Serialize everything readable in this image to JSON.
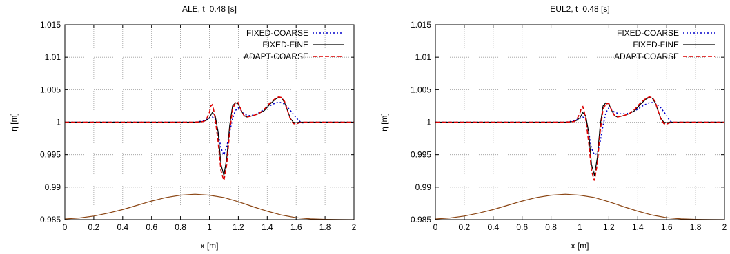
{
  "chart_data": [
    {
      "type": "line",
      "title": "ALE, t=0.48 [s]",
      "xlabel": "x [m]",
      "ylabel": "η [m]",
      "xlim": [
        0,
        2
      ],
      "ylim": [
        0.985,
        1.015
      ],
      "xticks": [
        "0",
        "0.2",
        "0.4",
        "0.6",
        "0.8",
        "1",
        "1.2",
        "1.4",
        "1.6",
        "1.8",
        "2"
      ],
      "yticks": [
        "0.985",
        "0.99",
        "0.995",
        "1",
        "1.005",
        "1.01",
        "1.015"
      ],
      "grid": true,
      "legend_position": "top-right",
      "series": [
        {
          "name": "FIXED-COARSE",
          "color": "#0000cc",
          "dash": "dotted",
          "x": [
            0,
            0.9,
            0.96,
            1.0,
            1.02,
            1.04,
            1.06,
            1.08,
            1.1,
            1.12,
            1.14,
            1.16,
            1.18,
            1.2,
            1.22,
            1.24,
            1.28,
            1.32,
            1.36,
            1.4,
            1.44,
            1.48,
            1.52,
            1.56,
            1.6,
            1.62,
            1.64,
            1.7,
            2.0
          ],
          "y": [
            1.0,
            1.0,
            1.0002,
            1.0006,
            1.0008,
            1.0004,
            0.9985,
            0.996,
            0.995,
            0.9962,
            0.9985,
            1.0005,
            1.0018,
            1.0022,
            1.0018,
            1.0012,
            1.001,
            1.0012,
            1.0017,
            1.0023,
            1.0028,
            1.0031,
            1.0028,
            1.0018,
            1.0007,
            1.0002,
            0.9999,
            1.0,
            1.0
          ]
        },
        {
          "name": "FIXED-FINE",
          "color": "#000000",
          "dash": "solid",
          "x": [
            0,
            0.9,
            0.96,
            0.98,
            1.0,
            1.02,
            1.04,
            1.06,
            1.08,
            1.1,
            1.12,
            1.14,
            1.16,
            1.18,
            1.2,
            1.22,
            1.24,
            1.26,
            1.3,
            1.34,
            1.38,
            1.42,
            1.46,
            1.48,
            1.5,
            1.52,
            1.54,
            1.56,
            1.58,
            1.6,
            1.62,
            1.7,
            2.0
          ],
          "y": [
            1.0,
            1.0,
            1.0001,
            1.0003,
            1.0007,
            1.0015,
            1.001,
            0.9985,
            0.9935,
            0.9918,
            0.9945,
            0.9995,
            1.0025,
            1.003,
            1.0028,
            1.0018,
            1.001,
            1.0008,
            1.001,
            1.0013,
            1.0018,
            1.0028,
            1.0036,
            1.0038,
            1.0037,
            1.003,
            1.0018,
            1.0006,
            1.0,
            0.9999,
            1.0,
            1.0,
            1.0
          ]
        },
        {
          "name": "ADAPT-COARSE",
          "color": "#dd0000",
          "dash": "dashed",
          "x": [
            0,
            0.9,
            0.96,
            0.98,
            1.0,
            1.01,
            1.02,
            1.03,
            1.04,
            1.06,
            1.08,
            1.1,
            1.12,
            1.14,
            1.16,
            1.18,
            1.2,
            1.22,
            1.24,
            1.26,
            1.3,
            1.34,
            1.38,
            1.42,
            1.46,
            1.48,
            1.5,
            1.52,
            1.54,
            1.56,
            1.58,
            1.6,
            1.62,
            1.64,
            1.7,
            2.0
          ],
          "y": [
            1.0,
            1.0,
            1.0001,
            1.0005,
            1.0015,
            1.0025,
            1.0027,
            1.0018,
            1.0005,
            0.997,
            0.9925,
            0.991,
            0.9935,
            0.9985,
            1.002,
            1.003,
            1.003,
            1.0018,
            1.001,
            1.0008,
            1.001,
            1.0013,
            1.002,
            1.003,
            1.0037,
            1.0039,
            1.0038,
            1.0032,
            1.0018,
            1.0005,
            0.9998,
            0.9997,
            0.9999,
            1.0,
            1.0,
            1.0
          ]
        },
        {
          "color": "#8b4513",
          "dash": "solid",
          "x": [
            0,
            0.1,
            0.2,
            0.3,
            0.4,
            0.5,
            0.6,
            0.7,
            0.8,
            0.9,
            1.0,
            1.1,
            1.2,
            1.3,
            1.4,
            1.5,
            1.6,
            1.7,
            1.8,
            1.9,
            2.0
          ],
          "y": [
            0.9851,
            0.98525,
            0.98555,
            0.986,
            0.98655,
            0.9872,
            0.98785,
            0.9884,
            0.98875,
            0.9889,
            0.98875,
            0.9884,
            0.98775,
            0.987,
            0.9863,
            0.9857,
            0.9853,
            0.98512,
            0.98504,
            0.98501,
            0.985
          ]
        }
      ]
    },
    {
      "type": "line",
      "title": "EUL2, t=0.48 [s]",
      "xlabel": "x [m]",
      "ylabel": "η [m]",
      "xlim": [
        0,
        2
      ],
      "ylim": [
        0.985,
        1.015
      ],
      "xticks": [
        "0",
        "0.2",
        "0.4",
        "0.6",
        "0.8",
        "1",
        "1.2",
        "1.4",
        "1.6",
        "1.8",
        "2"
      ],
      "yticks": [
        "0.985",
        "0.99",
        "0.995",
        "1",
        "1.005",
        "1.01",
        "1.015"
      ],
      "grid": true,
      "legend_position": "top-right",
      "series": [
        {
          "name": "FIXED-COARSE",
          "color": "#0000cc",
          "dash": "dotted",
          "x": [
            0,
            0.9,
            0.96,
            1.0,
            1.02,
            1.04,
            1.06,
            1.08,
            1.1,
            1.12,
            1.14,
            1.16,
            1.18,
            1.2,
            1.22,
            1.24,
            1.28,
            1.32,
            1.36,
            1.4,
            1.44,
            1.48,
            1.52,
            1.56,
            1.6,
            1.62,
            1.64,
            1.7,
            2.0
          ],
          "y": [
            1.0,
            1.0,
            1.0002,
            1.0006,
            1.0008,
            1.0004,
            0.9985,
            0.996,
            0.995,
            0.9952,
            0.997,
            0.9995,
            1.0015,
            1.0022,
            1.002,
            1.0015,
            1.0013,
            1.0013,
            1.0015,
            1.002,
            1.0026,
            1.003,
            1.003,
            1.0022,
            1.001,
            1.0003,
            0.9999,
            1.0,
            1.0
          ]
        },
        {
          "name": "FIXED-FINE",
          "color": "#000000",
          "dash": "solid",
          "x": [
            0,
            0.9,
            0.96,
            0.98,
            1.0,
            1.02,
            1.04,
            1.06,
            1.08,
            1.1,
            1.12,
            1.14,
            1.16,
            1.18,
            1.2,
            1.22,
            1.24,
            1.26,
            1.3,
            1.34,
            1.38,
            1.42,
            1.46,
            1.48,
            1.5,
            1.52,
            1.54,
            1.56,
            1.58,
            1.6,
            1.62,
            1.7,
            2.0
          ],
          "y": [
            1.0,
            1.0,
            1.0001,
            1.0003,
            1.0007,
            1.0015,
            1.001,
            0.9985,
            0.9935,
            0.9918,
            0.9945,
            0.9995,
            1.0025,
            1.003,
            1.0028,
            1.0018,
            1.001,
            1.0008,
            1.001,
            1.0013,
            1.0018,
            1.0028,
            1.0036,
            1.0038,
            1.0037,
            1.003,
            1.0018,
            1.0006,
            1.0,
            0.9999,
            1.0,
            1.0,
            1.0
          ]
        },
        {
          "name": "ADAPT-COARSE",
          "color": "#dd0000",
          "dash": "dashed",
          "x": [
            0,
            0.9,
            0.96,
            0.98,
            1.0,
            1.01,
            1.02,
            1.03,
            1.04,
            1.06,
            1.08,
            1.1,
            1.12,
            1.14,
            1.16,
            1.18,
            1.2,
            1.22,
            1.24,
            1.26,
            1.3,
            1.34,
            1.38,
            1.42,
            1.46,
            1.48,
            1.5,
            1.52,
            1.54,
            1.56,
            1.58,
            1.6,
            1.62,
            1.64,
            1.7,
            2.0
          ],
          "y": [
            1.0,
            1.0,
            1.0001,
            1.0005,
            1.0014,
            1.0022,
            1.0024,
            1.0016,
            1.0005,
            0.997,
            0.9925,
            0.991,
            0.9935,
            0.9985,
            1.002,
            1.0028,
            1.0029,
            1.0018,
            1.001,
            1.0008,
            1.001,
            1.0013,
            1.002,
            1.003,
            1.0037,
            1.0039,
            1.0038,
            1.0032,
            1.0018,
            1.0005,
            0.9998,
            0.9997,
            0.9999,
            1.0,
            1.0,
            1.0
          ]
        },
        {
          "color": "#8b4513",
          "dash": "solid",
          "x": [
            0,
            0.1,
            0.2,
            0.3,
            0.4,
            0.5,
            0.6,
            0.7,
            0.8,
            0.9,
            1.0,
            1.1,
            1.2,
            1.3,
            1.4,
            1.5,
            1.6,
            1.7,
            1.8,
            1.9,
            2.0
          ],
          "y": [
            0.9851,
            0.98525,
            0.98555,
            0.986,
            0.98655,
            0.9872,
            0.98785,
            0.9884,
            0.98875,
            0.9889,
            0.98875,
            0.9884,
            0.98775,
            0.987,
            0.9863,
            0.9857,
            0.9853,
            0.98512,
            0.98504,
            0.98501,
            0.985
          ]
        }
      ]
    }
  ]
}
